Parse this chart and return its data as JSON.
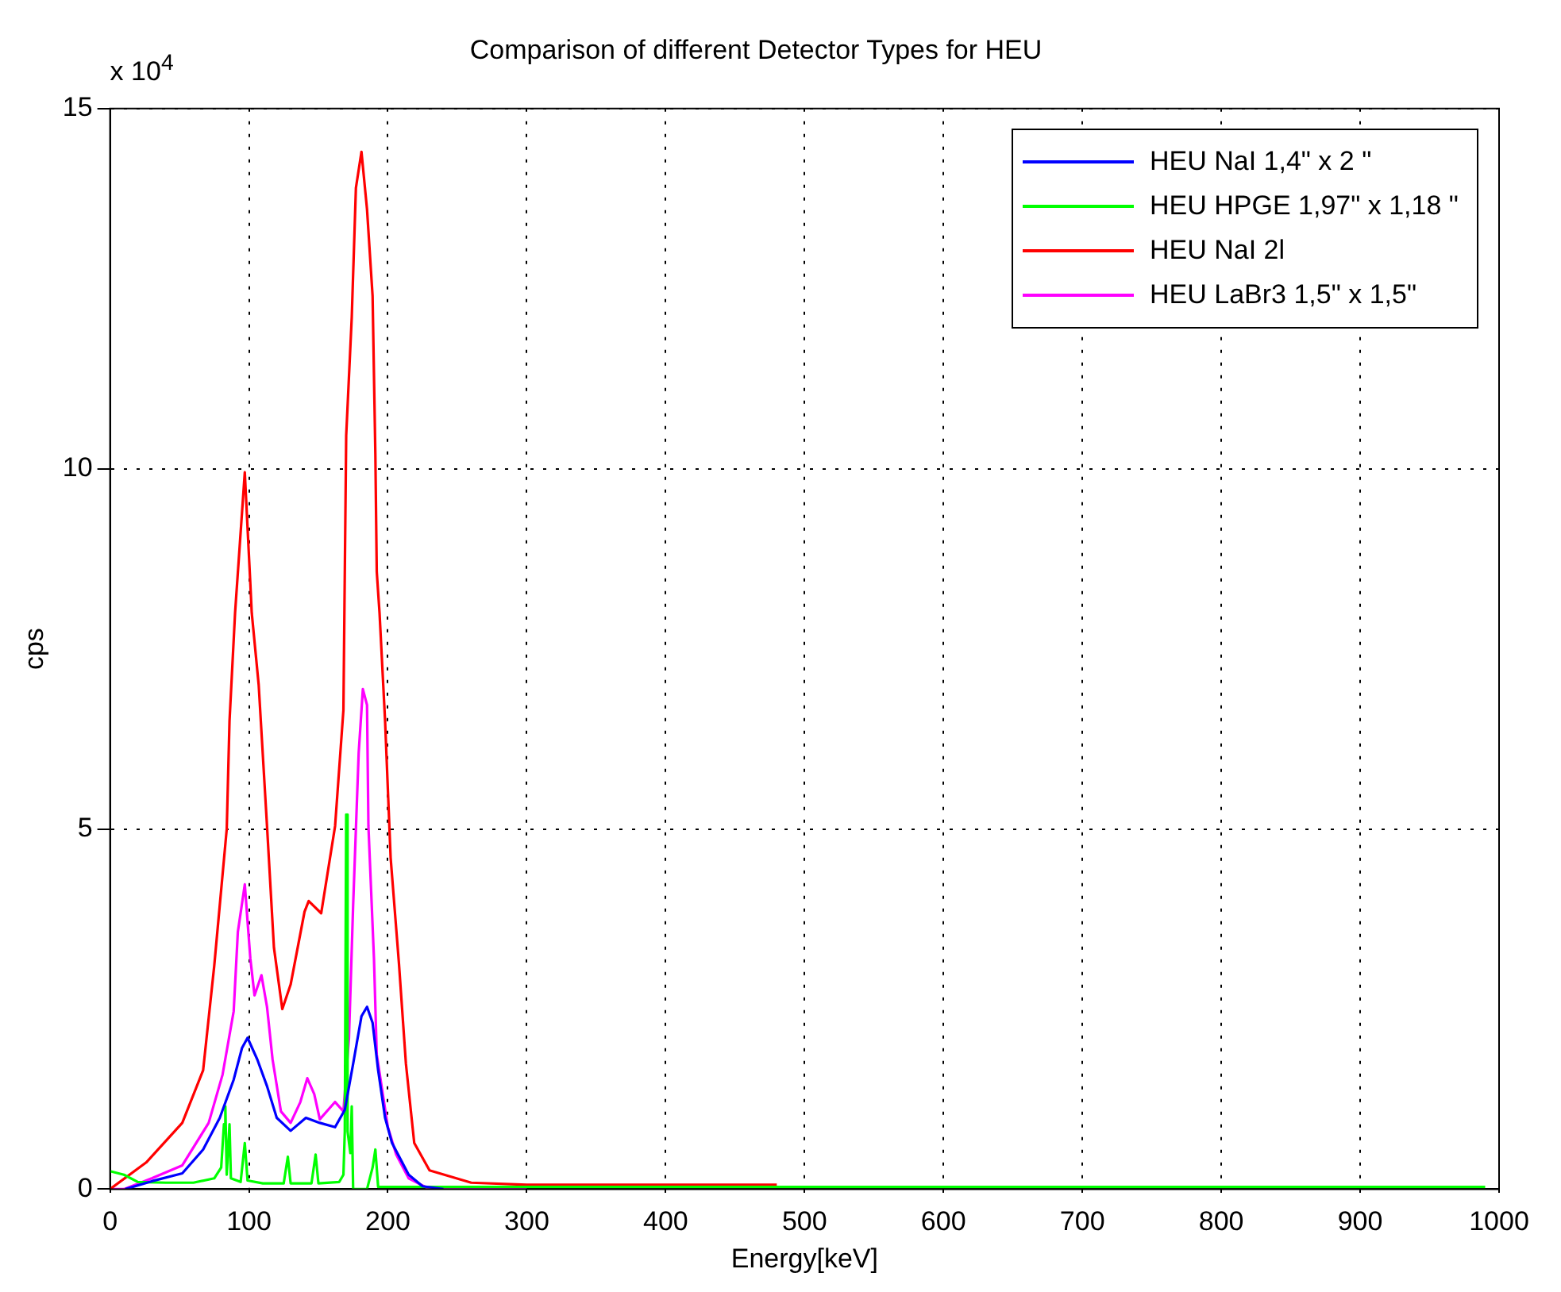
{
  "chart_data": {
    "type": "line",
    "title": "Comparison of different Detector Types for HEU",
    "xlabel": "Energy[keV]",
    "ylabel": "cps",
    "annotations": [
      "x 10$^{4}$"
    ],
    "xlim": [
      0,
      1000
    ],
    "xticks": [
      0,
      100,
      200,
      300,
      400,
      500,
      600,
      700,
      800,
      900,
      1000
    ],
    "ylim": [
      0,
      15
    ],
    "yticks": [
      0,
      5,
      10,
      15
    ],
    "grid": true,
    "line_style": "solid",
    "marker": "none",
    "legend": "top right",
    "series": [
      {
        "name": "HEU NaI 1,4\" x 2 \"",
        "color": "#0000ff",
        "x": [
          11,
          30,
          52,
          67,
          79,
          89,
          95,
          99,
          106,
          113,
          120,
          130,
          141,
          151,
          162,
          169,
          175,
          181,
          185,
          189,
          193,
          198,
          203,
          215,
          225,
          240
        ],
        "values": [
          0,
          0.11,
          0.22,
          0.55,
          0.99,
          1.52,
          1.96,
          2.1,
          1.8,
          1.43,
          0.99,
          0.81,
          0.99,
          0.92,
          0.86,
          1.1,
          1.74,
          2.4,
          2.53,
          2.31,
          1.65,
          0.99,
          0.64,
          0.2,
          0.04,
          0
        ]
      },
      {
        "name": "HEU HPGE 1,97\" x 1,18 \"",
        "color": "#00ff00",
        "x": [
          0,
          10,
          20,
          40,
          60,
          75,
          80,
          82,
          83,
          84,
          86,
          87,
          94,
          97,
          99,
          110,
          125,
          128,
          130,
          145,
          148,
          150,
          165,
          168,
          169,
          170,
          171,
          173,
          174,
          175,
          185,
          189,
          191,
          193,
          990
        ],
        "values": [
          0.25,
          0.2,
          0.1,
          0.09,
          0.09,
          0.15,
          0.3,
          0.9,
          1.15,
          0.2,
          0.9,
          0.15,
          0.1,
          0.64,
          0.12,
          0.08,
          0.08,
          0.45,
          0.08,
          0.08,
          0.48,
          0.08,
          0.1,
          0.2,
          0.8,
          5.2,
          0.8,
          0.5,
          1.15,
          0,
          0,
          0.3,
          0.55,
          0.03,
          0.03
        ]
      },
      {
        "name": "HEU NaI 2l",
        "color": "#ff0000",
        "x": [
          0,
          26,
          52,
          67,
          75,
          84,
          86,
          90,
          97,
          101,
          102,
          107,
          113,
          118,
          124,
          130,
          140,
          143,
          152,
          162,
          168,
          170,
          174,
          177,
          181,
          185,
          189,
          191,
          192,
          194,
          198,
          202,
          208,
          213,
          219,
          230,
          260,
          300,
          480
        ],
        "values": [
          0,
          0.37,
          0.92,
          1.65,
          3.1,
          5,
          6.5,
          8,
          9.95,
          8.4,
          8,
          7,
          5.04,
          3.35,
          2.5,
          2.84,
          3.85,
          4,
          3.83,
          5.04,
          6.65,
          10.46,
          12.1,
          13.9,
          14.4,
          13.6,
          12.4,
          10.2,
          8.57,
          8,
          6.5,
          4.6,
          3.13,
          1.74,
          0.64,
          0.26,
          0.09,
          0.06,
          0.06
        ]
      },
      {
        "name": "HEU LaBr3 1,5\" x 1,5\"",
        "color": "#ff00ff",
        "x": [
          0,
          10,
          30,
          52,
          71,
          81,
          89,
          92,
          97,
          101,
          104,
          109,
          113,
          117,
          123,
          130,
          137,
          142,
          147,
          151,
          162,
          168,
          172,
          175,
          179,
          182,
          185,
          186,
          190,
          192,
          200,
          206,
          215,
          230,
          300
        ],
        "values": [
          0,
          0,
          0.15,
          0.33,
          0.92,
          1.59,
          2.47,
          3.57,
          4.23,
          3.2,
          2.69,
          2.97,
          2.53,
          1.8,
          1.08,
          0.92,
          1.21,
          1.54,
          1.32,
          0.97,
          1.21,
          1.08,
          2.1,
          3.94,
          6.06,
          6.94,
          6.72,
          5.04,
          3.2,
          1.87,
          0.86,
          0.48,
          0.15,
          0,
          0
        ]
      }
    ]
  }
}
